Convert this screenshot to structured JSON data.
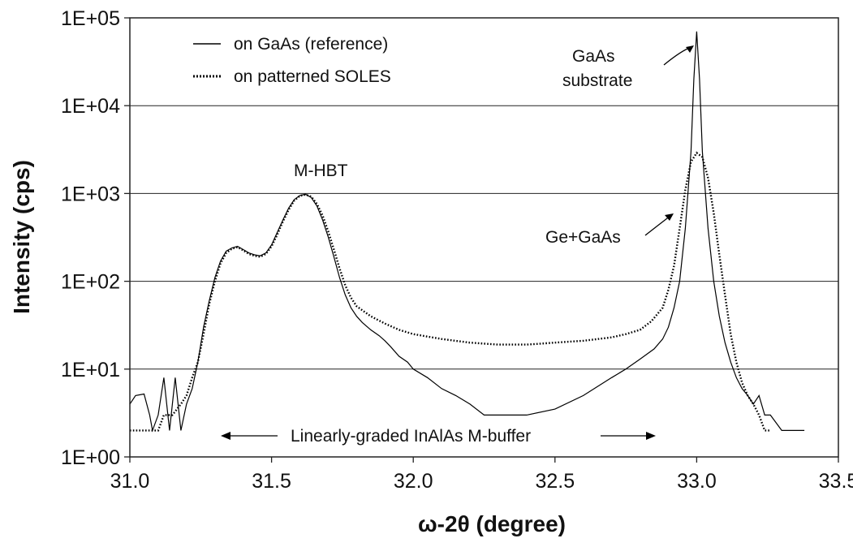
{
  "chart_data": {
    "type": "line",
    "title": "",
    "xlabel": "ω-2θ (degree)",
    "ylabel": "Intensity (cps)",
    "xlim": [
      31.0,
      33.5
    ],
    "ylim": [
      1,
      100000
    ],
    "yscale": "log",
    "grid": "horizontal",
    "x_ticks": [
      "31.0",
      "31.5",
      "32.0",
      "32.5",
      "33.0",
      "33.5"
    ],
    "y_ticks": [
      "1E+00",
      "1E+01",
      "1E+02",
      "1E+03",
      "1E+04",
      "1E+05"
    ],
    "legend": {
      "position": "top-left",
      "entries": [
        "on GaAs (reference)",
        "on patterned SOLES"
      ]
    },
    "series": [
      {
        "name": "on GaAs (reference)",
        "style": "solid",
        "points": [
          [
            31.0,
            4
          ],
          [
            31.02,
            5
          ],
          [
            31.05,
            5.2
          ],
          [
            31.07,
            3
          ],
          [
            31.08,
            2
          ],
          [
            31.1,
            3
          ],
          [
            31.12,
            8
          ],
          [
            31.14,
            2
          ],
          [
            31.16,
            8
          ],
          [
            31.18,
            2
          ],
          [
            31.2,
            4
          ],
          [
            31.22,
            6
          ],
          [
            31.24,
            12
          ],
          [
            31.26,
            30
          ],
          [
            31.28,
            60
          ],
          [
            31.3,
            110
          ],
          [
            31.32,
            170
          ],
          [
            31.34,
            220
          ],
          [
            31.36,
            240
          ],
          [
            31.38,
            250
          ],
          [
            31.4,
            230
          ],
          [
            31.42,
            210
          ],
          [
            31.44,
            200
          ],
          [
            31.46,
            195
          ],
          [
            31.48,
            210
          ],
          [
            31.5,
            260
          ],
          [
            31.52,
            360
          ],
          [
            31.54,
            500
          ],
          [
            31.56,
            680
          ],
          [
            31.58,
            850
          ],
          [
            31.6,
            950
          ],
          [
            31.62,
            980
          ],
          [
            31.64,
            900
          ],
          [
            31.66,
            720
          ],
          [
            31.68,
            500
          ],
          [
            31.7,
            320
          ],
          [
            31.72,
            190
          ],
          [
            31.74,
            110
          ],
          [
            31.76,
            70
          ],
          [
            31.78,
            50
          ],
          [
            31.8,
            40
          ],
          [
            31.82,
            34
          ],
          [
            31.85,
            28
          ],
          [
            31.88,
            24
          ],
          [
            31.9,
            21
          ],
          [
            31.92,
            18
          ],
          [
            31.95,
            14
          ],
          [
            31.98,
            12
          ],
          [
            32.0,
            10
          ],
          [
            32.05,
            8
          ],
          [
            32.1,
            6
          ],
          [
            32.15,
            5
          ],
          [
            32.2,
            4
          ],
          [
            32.25,
            3
          ],
          [
            32.3,
            3
          ],
          [
            32.4,
            3
          ],
          [
            32.5,
            3.5
          ],
          [
            32.6,
            5
          ],
          [
            32.7,
            8
          ],
          [
            32.75,
            10
          ],
          [
            32.8,
            13
          ],
          [
            32.85,
            17
          ],
          [
            32.88,
            22
          ],
          [
            32.9,
            30
          ],
          [
            32.92,
            50
          ],
          [
            32.94,
            100
          ],
          [
            32.96,
            400
          ],
          [
            32.98,
            3000
          ],
          [
            32.99,
            20000
          ],
          [
            33.0,
            70000
          ],
          [
            33.01,
            20000
          ],
          [
            33.02,
            3000
          ],
          [
            33.04,
            400
          ],
          [
            33.06,
            100
          ],
          [
            33.08,
            40
          ],
          [
            33.1,
            20
          ],
          [
            33.12,
            12
          ],
          [
            33.14,
            8
          ],
          [
            33.16,
            6
          ],
          [
            33.18,
            5
          ],
          [
            33.2,
            4
          ],
          [
            33.22,
            5
          ],
          [
            33.24,
            3
          ],
          [
            33.26,
            3
          ],
          [
            33.3,
            2
          ],
          [
            33.38,
            2
          ]
        ]
      },
      {
        "name": "on patterned SOLES",
        "style": "dotted",
        "points": [
          [
            31.0,
            2
          ],
          [
            31.05,
            2
          ],
          [
            31.1,
            2
          ],
          [
            31.12,
            3
          ],
          [
            31.15,
            3
          ],
          [
            31.18,
            4
          ],
          [
            31.2,
            5
          ],
          [
            31.22,
            8
          ],
          [
            31.24,
            12
          ],
          [
            31.26,
            25
          ],
          [
            31.28,
            55
          ],
          [
            31.3,
            100
          ],
          [
            31.32,
            160
          ],
          [
            31.34,
            210
          ],
          [
            31.36,
            235
          ],
          [
            31.38,
            245
          ],
          [
            31.4,
            225
          ],
          [
            31.42,
            205
          ],
          [
            31.44,
            195
          ],
          [
            31.46,
            190
          ],
          [
            31.48,
            205
          ],
          [
            31.5,
            250
          ],
          [
            31.52,
            340
          ],
          [
            31.54,
            480
          ],
          [
            31.56,
            650
          ],
          [
            31.58,
            830
          ],
          [
            31.6,
            940
          ],
          [
            31.62,
            970
          ],
          [
            31.64,
            920
          ],
          [
            31.66,
            760
          ],
          [
            31.68,
            560
          ],
          [
            31.7,
            370
          ],
          [
            31.72,
            230
          ],
          [
            31.74,
            140
          ],
          [
            31.76,
            90
          ],
          [
            31.78,
            65
          ],
          [
            31.8,
            52
          ],
          [
            31.85,
            40
          ],
          [
            31.9,
            33
          ],
          [
            31.95,
            28
          ],
          [
            32.0,
            25
          ],
          [
            32.1,
            22
          ],
          [
            32.2,
            20
          ],
          [
            32.3,
            19
          ],
          [
            32.4,
            19
          ],
          [
            32.5,
            20
          ],
          [
            32.6,
            21
          ],
          [
            32.7,
            23
          ],
          [
            32.75,
            25
          ],
          [
            32.8,
            28
          ],
          [
            32.84,
            35
          ],
          [
            32.88,
            50
          ],
          [
            32.9,
            80
          ],
          [
            32.92,
            150
          ],
          [
            32.94,
            400
          ],
          [
            32.96,
            1100
          ],
          [
            32.98,
            2300
          ],
          [
            33.0,
            2900
          ],
          [
            33.02,
            2600
          ],
          [
            33.04,
            1500
          ],
          [
            33.06,
            600
          ],
          [
            33.08,
            200
          ],
          [
            33.1,
            70
          ],
          [
            33.12,
            25
          ],
          [
            33.14,
            12
          ],
          [
            33.16,
            7
          ],
          [
            33.18,
            5
          ],
          [
            33.2,
            4
          ],
          [
            33.22,
            3
          ],
          [
            33.24,
            2
          ],
          [
            33.26,
            2
          ]
        ]
      }
    ],
    "annotations": [
      {
        "text": "GaAs",
        "x": 32.9,
        "y": 30000
      },
      {
        "text": "substrate",
        "x": 32.9,
        "y": 13000
      },
      {
        "text": "M-HBT",
        "x": 31.56,
        "y": 1800
      },
      {
        "text": "Ge+GaAs",
        "x": 32.8,
        "y": 90
      },
      {
        "text": "Linearly-graded InAlAs M-buffer",
        "x": 32.02,
        "y": 1.25
      }
    ]
  }
}
